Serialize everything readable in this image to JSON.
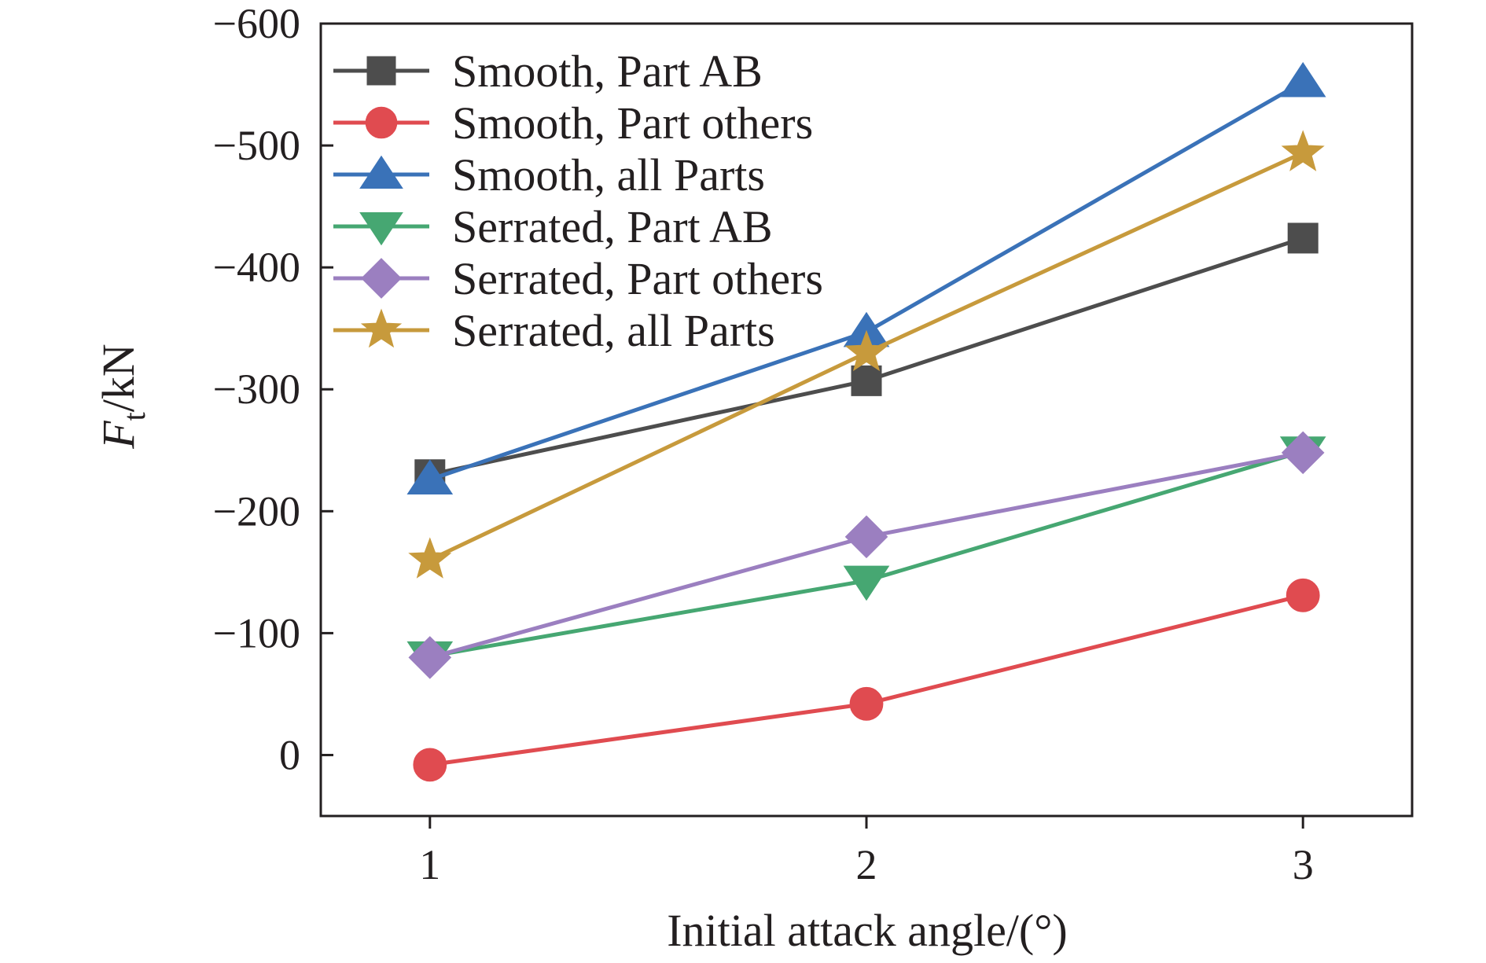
{
  "chart_data": {
    "type": "line",
    "xlabel": "Initial attack angle/(°)",
    "ylabel": {
      "main": "F",
      "sub": "t",
      "rest": "/kN"
    },
    "x": [
      1,
      2,
      3
    ],
    "x_ticks": [
      "1",
      "2",
      "3"
    ],
    "xlim": [
      0.75,
      3.25
    ],
    "ylim": [
      50,
      -600
    ],
    "y_ticks": [
      {
        "value": 0,
        "label": "0"
      },
      {
        "value": -100,
        "label": "−100"
      },
      {
        "value": -200,
        "label": "−200"
      },
      {
        "value": -300,
        "label": "−300"
      },
      {
        "value": -400,
        "label": "−400"
      },
      {
        "value": -500,
        "label": "−500"
      },
      {
        "value": -600,
        "label": "−600"
      }
    ],
    "y_axis_direction": "inverted (negative values upward)",
    "grid": false,
    "legend_position": "top-left",
    "series": [
      {
        "name": "Smooth, Part AB",
        "values": [
          -230,
          -307,
          -424
        ],
        "color": "#4d4d4d",
        "marker": "square"
      },
      {
        "name": "Smooth, Part others",
        "values": [
          8,
          -42,
          -131
        ],
        "color": "#e04b50",
        "marker": "circle"
      },
      {
        "name": "Smooth, all Parts",
        "values": [
          -226,
          -347,
          -552
        ],
        "color": "#3a72b8",
        "marker": "triangle-up"
      },
      {
        "name": "Serrated, Part AB",
        "values": [
          -81,
          -143,
          -249
        ],
        "color": "#46a772",
        "marker": "triangle-down"
      },
      {
        "name": "Serrated, Part others",
        "values": [
          -80,
          -179,
          -248
        ],
        "color": "#9b7fc0",
        "marker": "diamond"
      },
      {
        "name": "Serrated, all Parts",
        "values": [
          -160,
          -330,
          -494
        ],
        "color": "#c79a3c",
        "marker": "star"
      }
    ]
  }
}
